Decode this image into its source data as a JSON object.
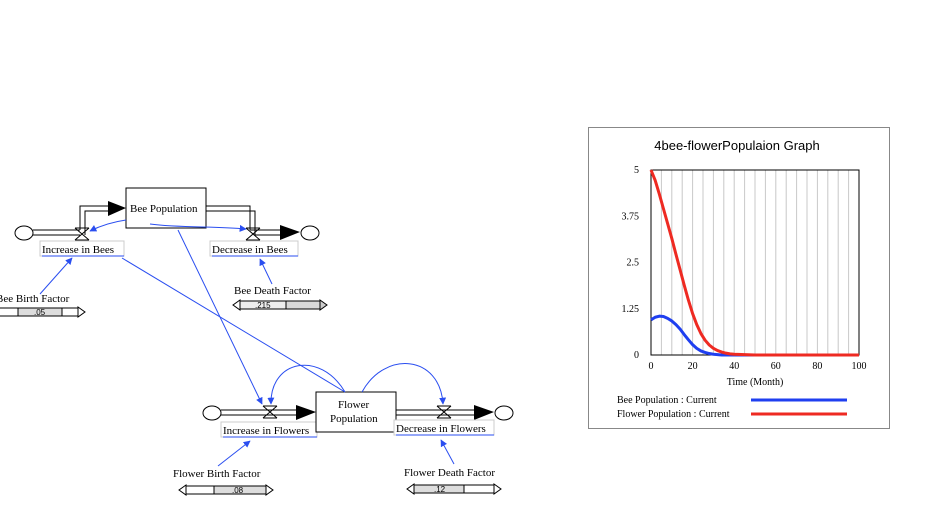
{
  "model": {
    "stocks": {
      "bee_population": "Bee Population",
      "flower_population_line1": "Flower",
      "flower_population_line2": "Population"
    },
    "flows": {
      "increase_in_bees": "Increase in Bees",
      "decrease_in_bees": "Decrease in Bees",
      "increase_in_flowers": "Increase in Flowers",
      "decrease_in_flowers": "Decrease in Flowers"
    },
    "sliders": {
      "bee_birth_factor": {
        "label": "Bee Birth Factor",
        "value": ".05"
      },
      "bee_death_factor": {
        "label": "Bee Death Factor",
        "value": ".215"
      },
      "flower_birth_factor": {
        "label": "Flower Birth Factor",
        "value": ".08"
      },
      "flower_death_factor": {
        "label": "Flower Death Factor",
        "value": ".12"
      }
    }
  },
  "colors": {
    "link": "#2a4ef0",
    "bee_series": "#1f3ff0",
    "flower_series": "#ee2a22"
  },
  "chart_data": {
    "type": "line",
    "title": "4bee-flowerPopulaion Graph",
    "xlabel": "Time (Month)",
    "ylabel": "",
    "xlim": [
      0,
      100
    ],
    "ylim": [
      0,
      5
    ],
    "x_ticks": [
      "0",
      "20",
      "40",
      "60",
      "80",
      "100"
    ],
    "y_ticks": [
      "5",
      "3.75",
      "2.5",
      "1.25",
      "0"
    ],
    "grid": "vertical",
    "legend_placement": "bottom",
    "x": [
      0,
      2,
      4,
      6,
      8,
      10,
      12,
      14,
      16,
      18,
      20,
      22,
      24,
      26,
      28,
      30,
      32,
      34,
      36,
      38,
      40,
      45,
      50,
      60,
      70,
      80,
      90,
      100
    ],
    "series": [
      {
        "name": "Bee Population : Current",
        "values": [
          0.95,
          1.02,
          1.05,
          1.04,
          0.99,
          0.92,
          0.82,
          0.7,
          0.55,
          0.41,
          0.28,
          0.18,
          0.11,
          0.07,
          0.04,
          0.02,
          0.01,
          0.0,
          0.0,
          0.0,
          0.0,
          0.0,
          0.0,
          0.0,
          0.0,
          0.0,
          0.0,
          0.0
        ]
      },
      {
        "name": "Flower Population : Current",
        "values": [
          5.0,
          4.72,
          4.35,
          3.95,
          3.55,
          3.15,
          2.72,
          2.3,
          1.88,
          1.48,
          1.12,
          0.82,
          0.58,
          0.4,
          0.27,
          0.18,
          0.12,
          0.08,
          0.05,
          0.03,
          0.02,
          0.01,
          0.0,
          0.0,
          0.0,
          0.0,
          0.0,
          0.0
        ]
      }
    ]
  }
}
